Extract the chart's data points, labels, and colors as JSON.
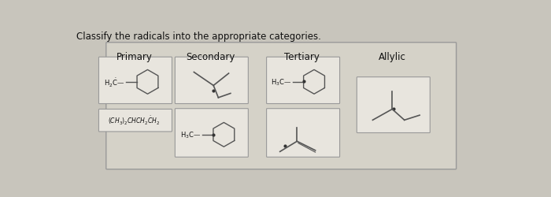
{
  "title": "Classify the radicals into the appropriate categories.",
  "categories": [
    "Primary",
    "Secondary",
    "Tertiary",
    "Allylic"
  ],
  "bg_color": "#c8c5bc",
  "outer_box_color": "#d5d2c8",
  "inner_box_color": "#e8e5de",
  "border_color": "#999999",
  "text_color": "#111111",
  "title_fontsize": 8.5,
  "cat_fontsize": 8.5,
  "line_color": "#555555",
  "dot_color": "#333333"
}
